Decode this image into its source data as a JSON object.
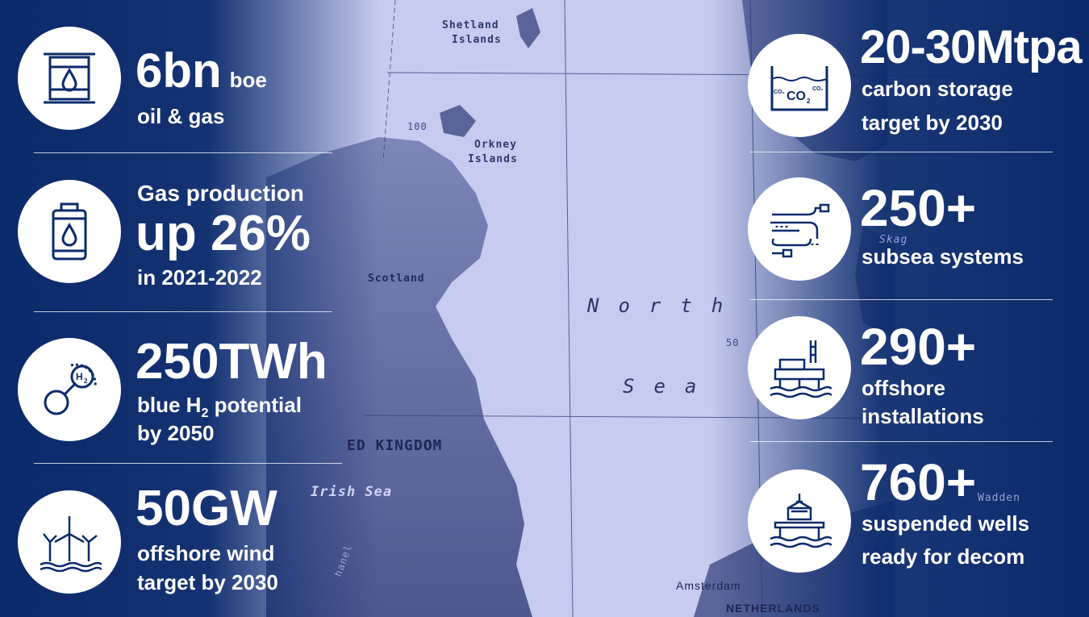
{
  "map": {
    "labels": {
      "shetland_line1": "Shetland",
      "shetland_line2": "Islands",
      "orkney_line1": "Orkney",
      "orkney_line2": "Islands",
      "scotland": "Scotland",
      "united_kingdom": "ED KINGDOM",
      "irish_sea": "Irish Sea",
      "north": "North",
      "sea": "Sea",
      "amsterdam": "Amsterdam",
      "netherlands": "NETHERLANDS",
      "skag": "Skag",
      "wadden": "Wadden",
      "depth_100": "100",
      "depth_50": "50",
      "channel": "hanel"
    }
  },
  "left_stats": [
    {
      "icon": "oil-barrel-icon",
      "value": "6bn",
      "unit": "boe",
      "caption": "oil & gas"
    },
    {
      "icon": "gas-cylinder-icon",
      "lead": "Gas production",
      "value": "up 26%",
      "caption": "in 2021-2022"
    },
    {
      "icon": "hydrogen-molecule-icon",
      "value": "250TWh",
      "caption_part1": "blue H",
      "caption_sub": "2",
      "caption_part2": " potential",
      "caption_line2": "by 2050"
    },
    {
      "icon": "wind-turbines-icon",
      "value": "50GW",
      "caption_line1": "offshore wind",
      "caption_line2": "target by 2030"
    }
  ],
  "right_stats": [
    {
      "icon": "co2-storage-icon",
      "value": "20-30Mtpa",
      "caption_line1": "carbon storage",
      "caption_line2": "target by 2030"
    },
    {
      "icon": "subsea-cables-icon",
      "value": "250+",
      "caption_line1": "subsea systems"
    },
    {
      "icon": "offshore-platform-icon",
      "value": "290+",
      "caption_line1": "offshore",
      "caption_line2": "installations"
    },
    {
      "icon": "decommission-crane-icon",
      "value": "760+",
      "caption_line1": "suspended wells",
      "caption_line2": "ready for decom"
    }
  ],
  "colors": {
    "navy": "#0b2a6b",
    "map_sea": "#c9cdf0",
    "map_land": "#6e77a8",
    "white": "#ffffff"
  }
}
